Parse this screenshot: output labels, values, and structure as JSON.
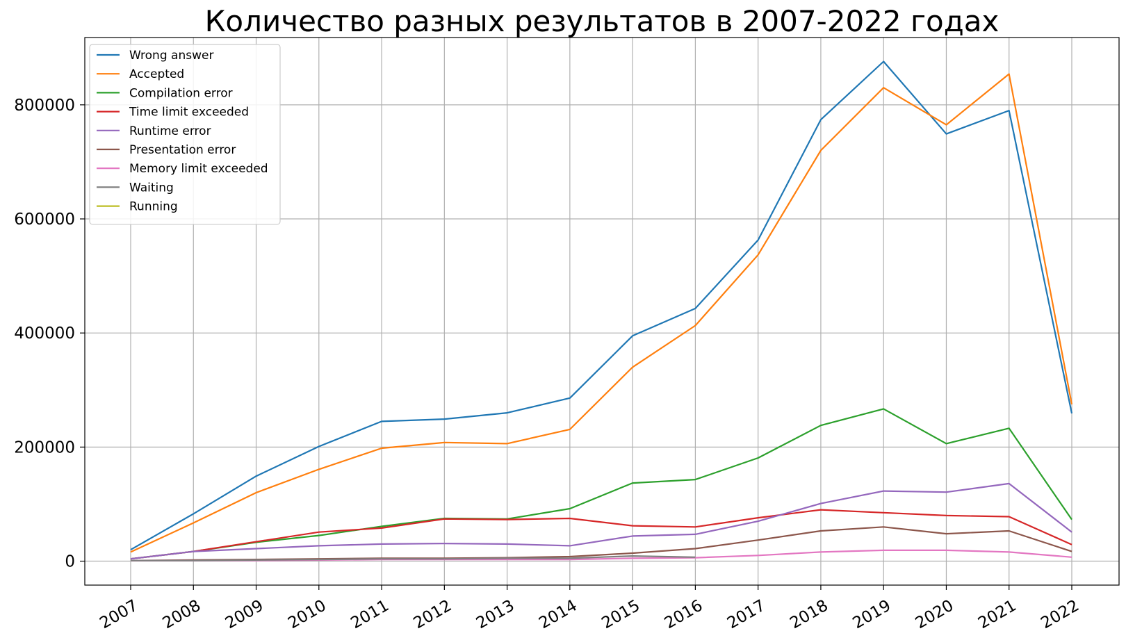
{
  "chart_data": {
    "type": "line",
    "title": "Количество разных результатов в 2007-2022 годах",
    "xlabel": "",
    "ylabel": "",
    "x": [
      "2007",
      "2008",
      "2009",
      "2010",
      "2011",
      "2012",
      "2013",
      "2014",
      "2015",
      "2016",
      "2017",
      "2018",
      "2019",
      "2020",
      "2021",
      "2022"
    ],
    "ylim": [
      -42000,
      918000
    ],
    "yticks": [
      0,
      200000,
      400000,
      600000,
      800000
    ],
    "ytick_labels": [
      "0",
      "200000",
      "400000",
      "600000",
      "800000"
    ],
    "grid": true,
    "legend_position": "top-left",
    "series": [
      {
        "name": "Wrong answer",
        "color": "#1f77b4",
        "values": [
          20000,
          83000,
          149000,
          201000,
          245000,
          249000,
          260000,
          286000,
          395000,
          443000,
          563000,
          774000,
          876000,
          749000,
          790000,
          259000
        ]
      },
      {
        "name": "Accepted",
        "color": "#ff7f0e",
        "values": [
          16000,
          67000,
          120000,
          161000,
          198000,
          208000,
          206000,
          231000,
          340000,
          413000,
          537000,
          720000,
          830000,
          765000,
          854000,
          275000
        ]
      },
      {
        "name": "Compilation error",
        "color": "#2ca02c",
        "values": [
          4000,
          17000,
          33000,
          45000,
          61000,
          75000,
          74000,
          92000,
          137000,
          143000,
          181000,
          238000,
          267000,
          206000,
          233000,
          73000
        ]
      },
      {
        "name": "Time limit exceeded",
        "color": "#d62728",
        "values": [
          4000,
          17000,
          34000,
          51000,
          58000,
          74000,
          73000,
          75000,
          62000,
          60000,
          76000,
          90000,
          85000,
          80000,
          78000,
          29000
        ]
      },
      {
        "name": "Runtime error",
        "color": "#9467bd",
        "values": [
          4000,
          17000,
          22000,
          27000,
          30000,
          31000,
          30000,
          27000,
          44000,
          47000,
          70000,
          101000,
          123000,
          121000,
          136000,
          51000
        ]
      },
      {
        "name": "Presentation error",
        "color": "#8c564b",
        "values": [
          1000,
          2000,
          3000,
          4000,
          5000,
          5000,
          6000,
          8000,
          14000,
          22000,
          37000,
          53000,
          60000,
          48000,
          53000,
          17000
        ]
      },
      {
        "name": "Memory limit exceeded",
        "color": "#e377c2",
        "values": [
          1000,
          1000,
          1000,
          2000,
          3000,
          3000,
          3000,
          3000,
          5000,
          6000,
          10000,
          16000,
          19000,
          19000,
          16000,
          7000
        ]
      },
      {
        "name": "Waiting",
        "color": "#7f7f7f",
        "values": [
          1000,
          1000,
          2000,
          3000,
          4000,
          4000,
          5000,
          5000,
          9000,
          7000,
          null,
          null,
          null,
          null,
          null,
          null
        ]
      },
      {
        "name": "Running",
        "color": "#bcbd22",
        "values": [
          null,
          null,
          null,
          null,
          null,
          null,
          null,
          null,
          null,
          null,
          null,
          null,
          null,
          null,
          null,
          null
        ]
      }
    ]
  }
}
